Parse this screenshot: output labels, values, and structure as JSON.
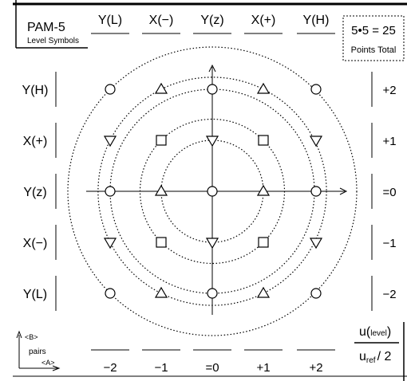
{
  "title": {
    "main": "PAM-5",
    "sub": "Level Symbols"
  },
  "total_box": {
    "formula": "5•5 = 25",
    "caption": "Points Total"
  },
  "top_labels": [
    "Y(L)",
    "X(−)",
    "Y(z)",
    "X(+)",
    "Y(H)"
  ],
  "left_labels": [
    "Y(H)",
    "X(+)",
    "Y(z)",
    "X(−)",
    "Y(L)"
  ],
  "right_labels": [
    "+2",
    "+1",
    "=0",
    "−1",
    "−2"
  ],
  "bottom_labels": [
    "−2",
    "−1",
    "=0",
    "+1",
    "+2"
  ],
  "legend": {
    "b_axis": "<B>",
    "a_axis": "<A>",
    "caption": "pairs"
  },
  "formula_box": {
    "numerator_u": "u",
    "numerator_sub": "level",
    "denominator_u": "u",
    "denominator_sub": "ref",
    "denominator_tail": "/ 2"
  },
  "levels": [
    -2,
    -1,
    0,
    1,
    2
  ],
  "symbol_grid": [
    [
      "circle",
      "triangle-up",
      "circle",
      "triangle-up",
      "circle"
    ],
    [
      "triangle-down",
      "square",
      "triangle-down",
      "square",
      "triangle-down"
    ],
    [
      "circle",
      "triangle-up",
      "circle",
      "triangle-up",
      "circle"
    ],
    [
      "triangle-down",
      "square",
      "triangle-down",
      "square",
      "triangle-down"
    ],
    [
      "circle",
      "triangle-up",
      "circle",
      "triangle-up",
      "circle"
    ]
  ],
  "ring_radii_levels": [
    1,
    1.414,
    2,
    2.236,
    2.828
  ]
}
